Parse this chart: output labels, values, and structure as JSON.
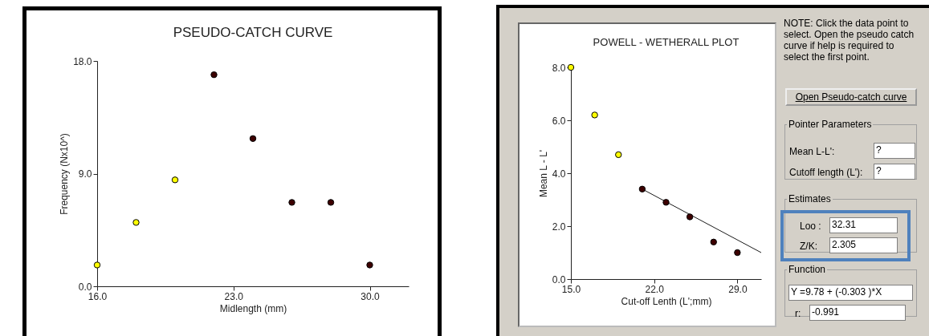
{
  "chart_data": [
    {
      "type": "scatter",
      "title": "PSEUDO-CATCH CURVE",
      "xlabel": "Midlength (mm)",
      "ylabel": "Frequency (Nx10^)",
      "grid": false,
      "xlim": [
        16,
        32
      ],
      "xticks": [
        {
          "value": 16,
          "label": "16.0"
        },
        {
          "value": 23,
          "label": "23.0"
        },
        {
          "value": 30,
          "label": "30.0"
        }
      ],
      "ylim": [
        0,
        18
      ],
      "yticks": [
        {
          "value": 0,
          "label": "0.0"
        },
        {
          "value": 9,
          "label": "9.0"
        },
        {
          "value": 18,
          "label": "18.0"
        }
      ],
      "series": [
        {
          "color": "#ffff00",
          "marker": "circle",
          "x": [
            16,
            18,
            20
          ],
          "values": [
            1.7,
            5.1,
            8.5
          ]
        },
        {
          "color": "#3d0000",
          "marker": "circle",
          "x": [
            22,
            24,
            26,
            28,
            30
          ],
          "values": [
            16.9,
            11.8,
            6.7,
            6.7,
            1.7
          ]
        }
      ]
    },
    {
      "type": "scatter",
      "title": "POWELL - WETHERALL PLOT",
      "xlabel": "Cut-off Lenth (L';mm)",
      "ylabel": "Mean L - L'",
      "grid": false,
      "xlim": [
        15,
        31
      ],
      "xticks": [
        {
          "value": 15,
          "label": "15.0"
        },
        {
          "value": 22,
          "label": "22.0"
        },
        {
          "value": 29,
          "label": "29.0"
        }
      ],
      "ylim": [
        0,
        8
      ],
      "yticks": [
        {
          "value": 0,
          "label": "0.0"
        },
        {
          "value": 2,
          "label": "2.0"
        },
        {
          "value": 4,
          "label": "4.0"
        },
        {
          "value": 6,
          "label": "6.0"
        },
        {
          "value": 8,
          "label": "8.0"
        }
      ],
      "series": [
        {
          "type": "line",
          "color": "#1a1a1a",
          "x": [
            21,
            31
          ],
          "values": [
            3.4,
            1.0
          ]
        },
        {
          "color": "#ffff00",
          "marker": "circle",
          "x": [
            15,
            17,
            19
          ],
          "values": [
            8.0,
            6.2,
            4.7
          ]
        },
        {
          "color": "#3d0000",
          "marker": "circle",
          "x": [
            21,
            23,
            25,
            27,
            29
          ],
          "values": [
            3.4,
            2.9,
            2.35,
            1.4,
            1.0
          ]
        }
      ]
    },
    {
      "type": "other",
      "annotations": [
        "NOTE: Click the data point to select. Open the pseudo catch curve if help is required to select the first point.",
        "Open Pseudo-catch curve",
        "Pointer Parameters",
        "Mean L-L':",
        "?",
        "Cutoff length (L'):",
        "?",
        "Estimates",
        "Loo :",
        "32.31",
        "Z/K:",
        "2.305",
        "Function",
        "Y =9.78 + (-0.303 )*X",
        "r:",
        "-0.991"
      ]
    }
  ]
}
